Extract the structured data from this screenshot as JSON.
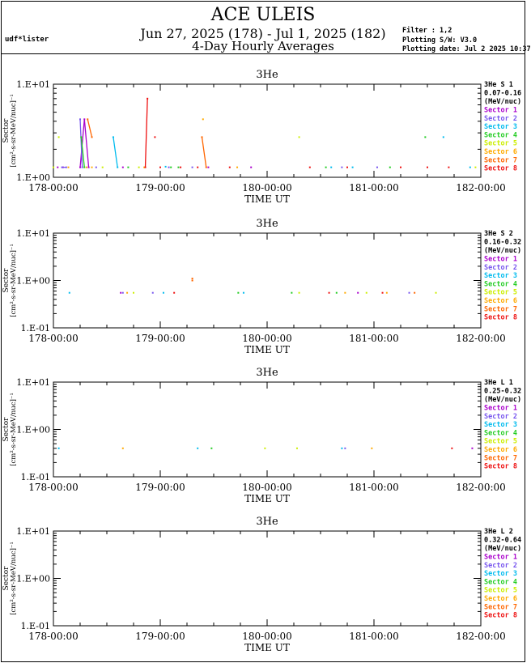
{
  "header": {
    "title": "ACE ULEIS",
    "date_range": "Jun 27, 2025 (178) - Jul  1, 2025 (182)",
    "subtitle": "4-Day Hourly Averages",
    "user": "udf*lister",
    "filter": "Filter : 1,2",
    "software": "Plotting S/W: V3.0",
    "plot_date": "Plotting date: Jul  2 2025 10:37"
  },
  "sector_colors": [
    "#aa00cc",
    "#7755ee",
    "#00bbee",
    "#22cc22",
    "#ccee00",
    "#ffaa00",
    "#ff6600",
    "#ee1111"
  ],
  "chart_data": [
    {
      "type": "line",
      "title": "3He",
      "xlabel": "TIME UT",
      "ylabel": "Sector",
      "yunit": "[cm²-s-sr-MeV/nuc]⁻¹",
      "log_y": true,
      "ylim": [
        1.0,
        10.0
      ],
      "xlim": [
        178,
        182
      ],
      "x_ticks": [
        178,
        179,
        180,
        181,
        182
      ],
      "x_tick_labels": [
        "178-00:00",
        "179-00:00",
        "180-00:00",
        "181-00:00",
        "182-00:00"
      ],
      "y_tick_labels": [
        "1.E+01",
        "1.E+00"
      ],
      "legend": {
        "species": "3He S 1",
        "energy": "0.07-0.16",
        "unit": "(MeV/nuc)"
      },
      "series": [
        {
          "name": "Sector 1",
          "points": [
            [
              178.04,
              1.28
            ],
            [
              178.09,
              1.28
            ],
            [
              178.25,
              1.28
            ],
            [
              178.29,
              4.2
            ],
            [
              178.33,
              1.28
            ],
            [
              178.65,
              1.28
            ],
            [
              179.45,
              1.28
            ],
            [
              179.85,
              1.28
            ]
          ]
        },
        {
          "name": "Sector 2",
          "points": [
            [
              178.08,
              1.28
            ],
            [
              178.12,
              1.28
            ],
            [
              178.25,
              4.2
            ],
            [
              178.27,
              1.28
            ],
            [
              178.4,
              1.28
            ],
            [
              179.08,
              1.28
            ],
            [
              179.3,
              1.28
            ],
            [
              180.7,
              1.28
            ],
            [
              181.03,
              1.28
            ]
          ]
        },
        {
          "name": "Sector 3",
          "points": [
            [
              178.56,
              2.7
            ],
            [
              178.6,
              1.28
            ],
            [
              179.05,
              1.3
            ],
            [
              180.6,
              1.28
            ],
            [
              180.8,
              1.28
            ],
            [
              181.65,
              2.7
            ],
            [
              181.9,
              1.28
            ]
          ]
        },
        {
          "name": "Sector 4",
          "points": [
            [
              178.26,
              2.7
            ],
            [
              178.29,
              1.28
            ],
            [
              178.7,
              1.28
            ],
            [
              179.1,
              1.28
            ],
            [
              179.17,
              1.28
            ],
            [
              180.55,
              1.28
            ],
            [
              181.15,
              1.28
            ],
            [
              181.48,
              2.7
            ]
          ]
        },
        {
          "name": "Sector 5",
          "points": [
            [
              178.0,
              1.28
            ],
            [
              178.05,
              2.7
            ],
            [
              178.46,
              1.28
            ],
            [
              178.8,
              1.28
            ],
            [
              180.3,
              2.7
            ],
            [
              181.95,
              1.28
            ]
          ]
        },
        {
          "name": "Sector 6",
          "points": [
            [
              178.14,
              1.28
            ],
            [
              178.31,
              1.28
            ],
            [
              178.36,
              1.28
            ],
            [
              178.85,
              1.28
            ],
            [
              179.4,
              4.2
            ],
            [
              179.72,
              1.28
            ]
          ]
        },
        {
          "name": "Sector 7",
          "points": [
            [
              178.32,
              4.2
            ],
            [
              178.36,
              2.7
            ],
            [
              179.39,
              2.7
            ],
            [
              179.43,
              1.28
            ]
          ]
        },
        {
          "name": "Sector 8",
          "points": [
            [
              178.86,
              1.28
            ],
            [
              178.88,
              7.0
            ],
            [
              178.95,
              2.7
            ],
            [
              179.0,
              1.28
            ],
            [
              179.19,
              1.28
            ],
            [
              179.35,
              1.28
            ],
            [
              179.65,
              1.28
            ],
            [
              180.4,
              1.28
            ],
            [
              180.75,
              1.28
            ],
            [
              181.25,
              1.28
            ],
            [
              181.5,
              1.28
            ],
            [
              181.7,
              1.28
            ]
          ]
        }
      ]
    },
    {
      "type": "scatter",
      "title": "3He",
      "xlabel": "TIME UT",
      "ylabel": "Sector",
      "yunit": "[cm²-s-sr-MeV/nuc]⁻¹",
      "log_y": true,
      "ylim": [
        0.1,
        10.0
      ],
      "xlim": [
        178,
        182
      ],
      "x_ticks": [
        178,
        179,
        180,
        181,
        182
      ],
      "x_tick_labels": [
        "178-00:00",
        "179-00:00",
        "180-00:00",
        "181-00:00",
        "182-00:00"
      ],
      "y_tick_labels": [
        "1.E+01",
        "1.E+00",
        "1.E-01"
      ],
      "legend": {
        "species": "3He S 2",
        "energy": "0.16-0.32",
        "unit": "(MeV/nuc)"
      },
      "series": [
        {
          "name": "Sector 1",
          "points": [
            [
              178.63,
              0.55
            ],
            [
              180.85,
              0.55
            ]
          ]
        },
        {
          "name": "Sector 2",
          "points": [
            [
              178.65,
              0.55
            ],
            [
              178.93,
              0.55
            ],
            [
              181.33,
              0.55
            ]
          ]
        },
        {
          "name": "Sector 3",
          "points": [
            [
              178.15,
              0.55
            ],
            [
              179.03,
              0.55
            ],
            [
              179.78,
              0.55
            ]
          ]
        },
        {
          "name": "Sector 4",
          "points": [
            [
              179.73,
              0.55
            ],
            [
              180.23,
              0.55
            ],
            [
              180.65,
              0.55
            ]
          ]
        },
        {
          "name": "Sector 5",
          "points": [
            [
              178.75,
              0.55
            ],
            [
              180.3,
              0.55
            ],
            [
              180.93,
              0.55
            ],
            [
              181.58,
              0.55
            ]
          ]
        },
        {
          "name": "Sector 6",
          "points": [
            [
              178.69,
              0.55
            ],
            [
              180.73,
              0.55
            ],
            [
              181.12,
              0.55
            ]
          ]
        },
        {
          "name": "Sector 7",
          "points": [
            [
              179.3,
              1.1
            ],
            [
              179.3,
              1.0
            ],
            [
              181.38,
              0.55
            ]
          ]
        },
        {
          "name": "Sector 8",
          "points": [
            [
              179.13,
              0.55
            ],
            [
              180.58,
              0.55
            ],
            [
              181.08,
              0.55
            ]
          ]
        }
      ]
    },
    {
      "type": "scatter",
      "title": "3He",
      "xlabel": "TIME UT",
      "ylabel": "Sector",
      "yunit": "[cm²-s-sr-MeV/nuc]⁻¹",
      "log_y": true,
      "ylim": [
        0.1,
        10.0
      ],
      "xlim": [
        178,
        182
      ],
      "x_ticks": [
        178,
        179,
        180,
        181,
        182
      ],
      "x_tick_labels": [
        "178-00:00",
        "179-00:00",
        "180-00:00",
        "181-00:00",
        "182-00:00"
      ],
      "y_tick_labels": [
        "1.E+01",
        "1.E+00",
        "1.E-01"
      ],
      "legend": {
        "species": "3He L 1",
        "energy": "0.25-0.32",
        "unit": "(MeV/nuc)"
      },
      "series": [
        {
          "name": "Sector 1",
          "points": [
            [
              181.92,
              0.4
            ]
          ]
        },
        {
          "name": "Sector 2",
          "points": [
            [
              180.73,
              0.4
            ]
          ]
        },
        {
          "name": "Sector 3",
          "points": [
            [
              178.05,
              0.4
            ],
            [
              179.35,
              0.4
            ],
            [
              180.7,
              0.4
            ]
          ]
        },
        {
          "name": "Sector 4",
          "points": [
            [
              179.48,
              0.4
            ]
          ]
        },
        {
          "name": "Sector 5",
          "points": [
            [
              179.98,
              0.4
            ],
            [
              180.28,
              0.4
            ]
          ]
        },
        {
          "name": "Sector 6",
          "points": [
            [
              178.65,
              0.4
            ],
            [
              180.98,
              0.4
            ]
          ]
        },
        {
          "name": "Sector 7",
          "points": []
        },
        {
          "name": "Sector 8",
          "points": [
            [
              181.73,
              0.4
            ]
          ]
        }
      ]
    },
    {
      "type": "scatter",
      "title": "3He",
      "xlabel": "TIME UT",
      "ylabel": "Sector",
      "yunit": "[cm²-s-sr-MeV/nuc]⁻¹",
      "log_y": true,
      "ylim": [
        0.1,
        10.0
      ],
      "xlim": [
        178,
        182
      ],
      "x_ticks": [
        178,
        179,
        180,
        181,
        182
      ],
      "x_tick_labels": [
        "178-00:00",
        "179-00:00",
        "180-00:00",
        "181-00:00",
        "182-00:00"
      ],
      "y_tick_labels": [
        "1.E+01",
        "1.E+00",
        "1.E-01"
      ],
      "legend": {
        "species": "3He L 2",
        "energy": "0.32-0.64",
        "unit": "(MeV/nuc)"
      },
      "series": [
        {
          "name": "Sector 1",
          "points": []
        },
        {
          "name": "Sector 2",
          "points": []
        },
        {
          "name": "Sector 3",
          "points": []
        },
        {
          "name": "Sector 4",
          "points": []
        },
        {
          "name": "Sector 5",
          "points": []
        },
        {
          "name": "Sector 6",
          "points": []
        },
        {
          "name": "Sector 7",
          "points": []
        },
        {
          "name": "Sector 8",
          "points": []
        }
      ]
    }
  ]
}
